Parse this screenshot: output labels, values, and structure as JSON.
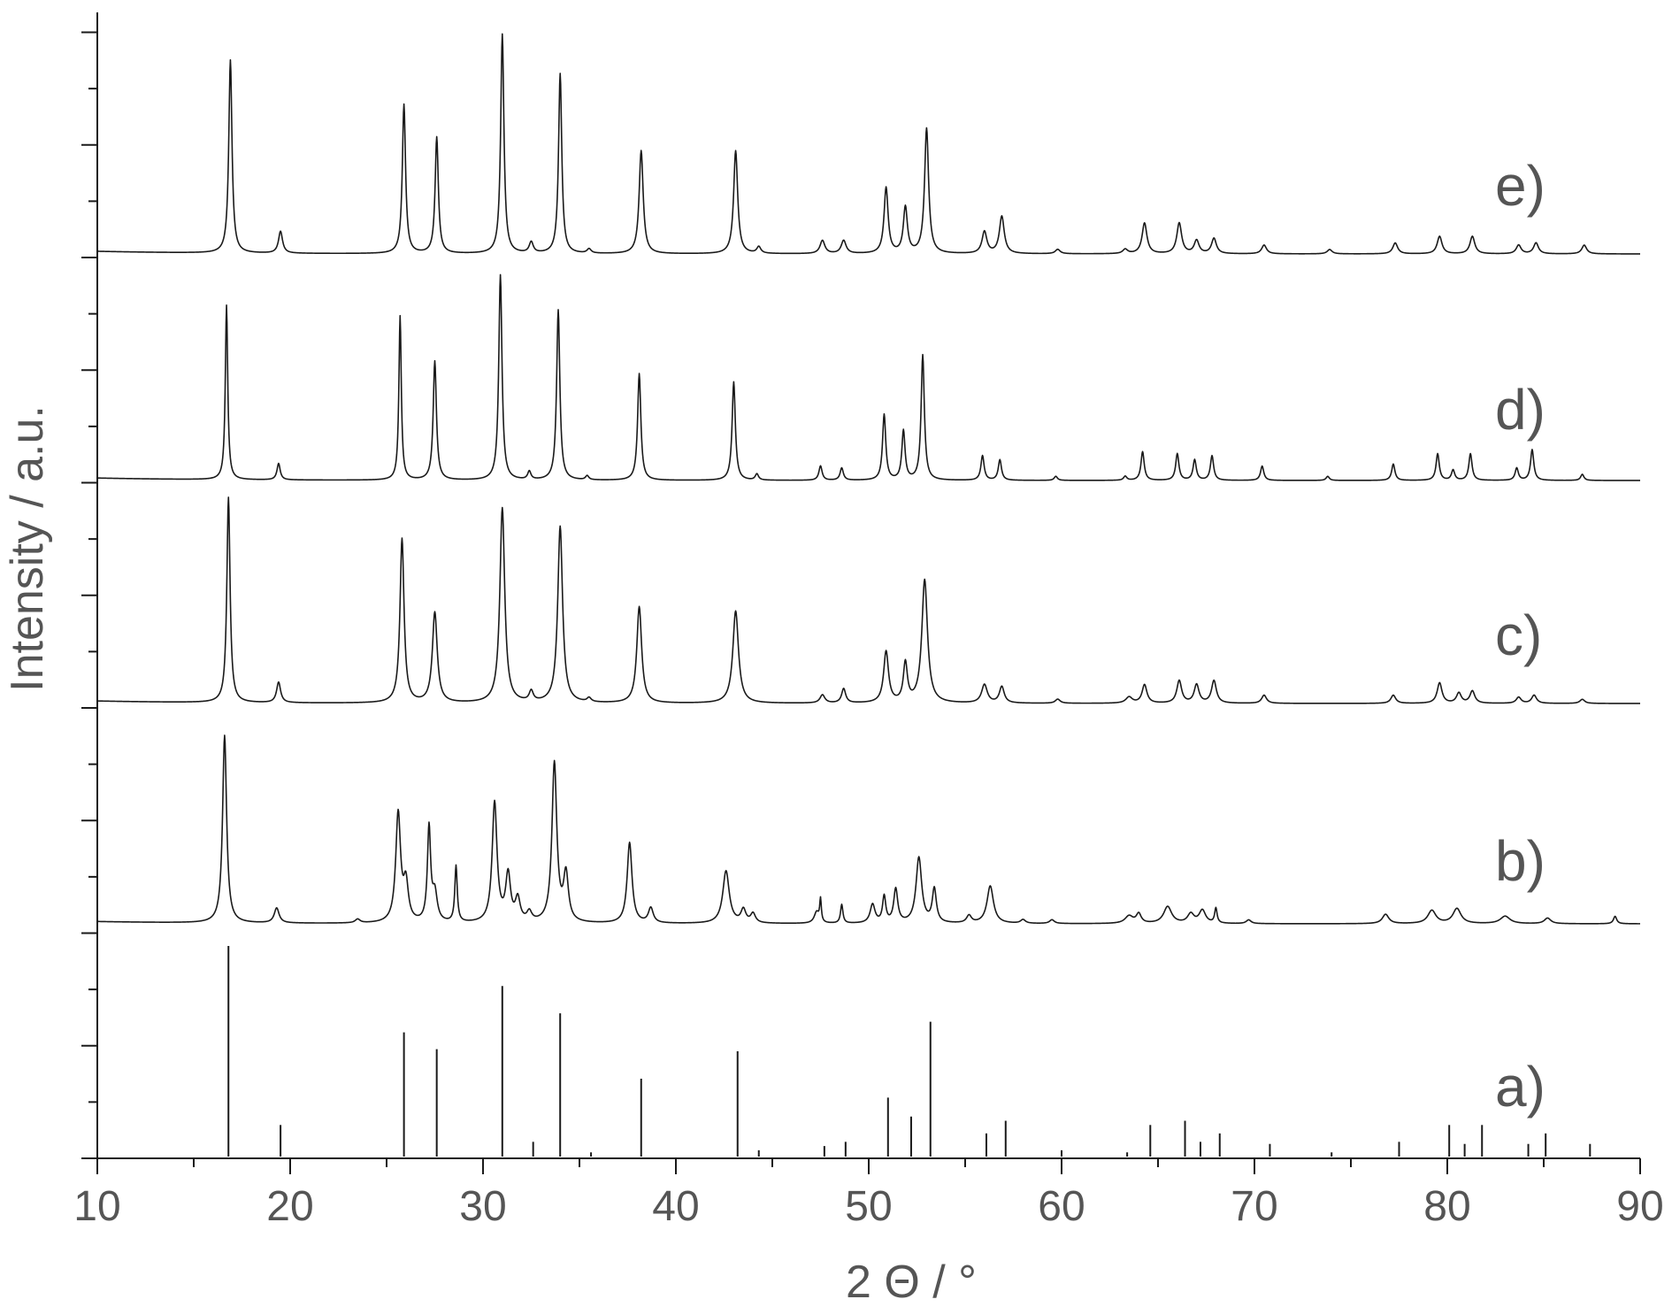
{
  "chart_data": {
    "type": "line",
    "title": "",
    "xlabel": "2 Θ / °",
    "ylabel": "Intensity / a.u.",
    "xlim": [
      10,
      90
    ],
    "x_ticks": [
      10,
      20,
      30,
      40,
      50,
      60,
      70,
      80,
      90
    ],
    "y_tick_labels": "none",
    "grid": false,
    "legend": "none",
    "stacked_offset": true,
    "series": [
      {
        "name": "a)",
        "style": "stick",
        "peaks": [
          {
            "x": 16.8,
            "y": 100
          },
          {
            "x": 19.5,
            "y": 15
          },
          {
            "x": 25.9,
            "y": 59
          },
          {
            "x": 27.6,
            "y": 51
          },
          {
            "x": 31.0,
            "y": 81
          },
          {
            "x": 32.6,
            "y": 7
          },
          {
            "x": 34.0,
            "y": 68
          },
          {
            "x": 35.6,
            "y": 2
          },
          {
            "x": 38.2,
            "y": 37
          },
          {
            "x": 43.2,
            "y": 50
          },
          {
            "x": 44.3,
            "y": 3
          },
          {
            "x": 47.7,
            "y": 5
          },
          {
            "x": 48.8,
            "y": 7
          },
          {
            "x": 51.0,
            "y": 28
          },
          {
            "x": 52.2,
            "y": 19
          },
          {
            "x": 53.2,
            "y": 64
          },
          {
            "x": 56.1,
            "y": 11
          },
          {
            "x": 57.1,
            "y": 17
          },
          {
            "x": 60.0,
            "y": 3
          },
          {
            "x": 63.4,
            "y": 2
          },
          {
            "x": 64.6,
            "y": 15
          },
          {
            "x": 66.4,
            "y": 17
          },
          {
            "x": 67.2,
            "y": 7
          },
          {
            "x": 68.2,
            "y": 11
          },
          {
            "x": 70.8,
            "y": 6
          },
          {
            "x": 74.0,
            "y": 2
          },
          {
            "x": 77.5,
            "y": 7
          },
          {
            "x": 80.1,
            "y": 15
          },
          {
            "x": 80.9,
            "y": 6
          },
          {
            "x": 81.8,
            "y": 15
          },
          {
            "x": 84.2,
            "y": 6
          },
          {
            "x": 85.1,
            "y": 11
          },
          {
            "x": 87.4,
            "y": 6
          }
        ]
      },
      {
        "name": "b)",
        "style": "line",
        "peaks": [
          {
            "x": 16.6,
            "y": 100,
            "w": 0.25
          },
          {
            "x": 19.3,
            "y": 8,
            "w": 0.3
          },
          {
            "x": 23.5,
            "y": 2,
            "w": 0.3
          },
          {
            "x": 25.6,
            "y": 58,
            "w": 0.3
          },
          {
            "x": 26.0,
            "y": 20,
            "w": 0.3
          },
          {
            "x": 27.2,
            "y": 50,
            "w": 0.2
          },
          {
            "x": 27.5,
            "y": 15,
            "w": 0.3
          },
          {
            "x": 28.6,
            "y": 30,
            "w": 0.15
          },
          {
            "x": 30.6,
            "y": 64,
            "w": 0.3
          },
          {
            "x": 31.3,
            "y": 25,
            "w": 0.3
          },
          {
            "x": 31.8,
            "y": 12,
            "w": 0.3
          },
          {
            "x": 32.4,
            "y": 5,
            "w": 0.3
          },
          {
            "x": 33.7,
            "y": 85,
            "w": 0.3
          },
          {
            "x": 34.3,
            "y": 25,
            "w": 0.3
          },
          {
            "x": 37.6,
            "y": 43,
            "w": 0.3
          },
          {
            "x": 38.7,
            "y": 8,
            "w": 0.3
          },
          {
            "x": 42.6,
            "y": 28,
            "w": 0.4
          },
          {
            "x": 43.5,
            "y": 7,
            "w": 0.3
          },
          {
            "x": 44.0,
            "y": 5,
            "w": 0.3
          },
          {
            "x": 47.3,
            "y": 6,
            "w": 0.3
          },
          {
            "x": 47.5,
            "y": 12,
            "w": 0.1
          },
          {
            "x": 48.6,
            "y": 10,
            "w": 0.15
          },
          {
            "x": 50.2,
            "y": 10,
            "w": 0.3
          },
          {
            "x": 50.8,
            "y": 14,
            "w": 0.2
          },
          {
            "x": 51.4,
            "y": 18,
            "w": 0.25
          },
          {
            "x": 52.6,
            "y": 35,
            "w": 0.35
          },
          {
            "x": 53.4,
            "y": 18,
            "w": 0.25
          },
          {
            "x": 55.2,
            "y": 4,
            "w": 0.3
          },
          {
            "x": 56.3,
            "y": 20,
            "w": 0.4
          },
          {
            "x": 58.0,
            "y": 2,
            "w": 0.3
          },
          {
            "x": 59.5,
            "y": 2,
            "w": 0.3
          },
          {
            "x": 63.5,
            "y": 4,
            "w": 0.5
          },
          {
            "x": 64.0,
            "y": 5,
            "w": 0.3
          },
          {
            "x": 65.5,
            "y": 9,
            "w": 0.5
          },
          {
            "x": 66.7,
            "y": 5,
            "w": 0.4
          },
          {
            "x": 67.3,
            "y": 7,
            "w": 0.4
          },
          {
            "x": 68.0,
            "y": 8,
            "w": 0.15
          },
          {
            "x": 69.7,
            "y": 2,
            "w": 0.3
          },
          {
            "x": 76.8,
            "y": 5,
            "w": 0.4
          },
          {
            "x": 79.2,
            "y": 7,
            "w": 0.5
          },
          {
            "x": 80.5,
            "y": 8,
            "w": 0.5
          },
          {
            "x": 83.0,
            "y": 4,
            "w": 0.6
          },
          {
            "x": 85.2,
            "y": 3,
            "w": 0.4
          },
          {
            "x": 88.7,
            "y": 4,
            "w": 0.2
          }
        ]
      },
      {
        "name": "c)",
        "style": "line",
        "peaks": [
          {
            "x": 16.8,
            "y": 100,
            "w": 0.2
          },
          {
            "x": 19.4,
            "y": 10,
            "w": 0.25
          },
          {
            "x": 25.8,
            "y": 80,
            "w": 0.25
          },
          {
            "x": 27.5,
            "y": 44,
            "w": 0.3
          },
          {
            "x": 31.0,
            "y": 95,
            "w": 0.3
          },
          {
            "x": 32.5,
            "y": 5,
            "w": 0.25
          },
          {
            "x": 34.0,
            "y": 86,
            "w": 0.3
          },
          {
            "x": 35.5,
            "y": 2,
            "w": 0.25
          },
          {
            "x": 38.1,
            "y": 47,
            "w": 0.3
          },
          {
            "x": 43.1,
            "y": 45,
            "w": 0.35
          },
          {
            "x": 47.6,
            "y": 4,
            "w": 0.3
          },
          {
            "x": 48.7,
            "y": 7,
            "w": 0.25
          },
          {
            "x": 50.9,
            "y": 25,
            "w": 0.3
          },
          {
            "x": 51.9,
            "y": 19,
            "w": 0.25
          },
          {
            "x": 52.9,
            "y": 60,
            "w": 0.35
          },
          {
            "x": 56.0,
            "y": 9,
            "w": 0.35
          },
          {
            "x": 56.9,
            "y": 8,
            "w": 0.3
          },
          {
            "x": 59.8,
            "y": 2,
            "w": 0.3
          },
          {
            "x": 63.5,
            "y": 3,
            "w": 0.4
          },
          {
            "x": 64.3,
            "y": 9,
            "w": 0.3
          },
          {
            "x": 66.1,
            "y": 11,
            "w": 0.3
          },
          {
            "x": 67.0,
            "y": 9,
            "w": 0.3
          },
          {
            "x": 67.9,
            "y": 11,
            "w": 0.3
          },
          {
            "x": 70.5,
            "y": 4,
            "w": 0.3
          },
          {
            "x": 77.2,
            "y": 4,
            "w": 0.3
          },
          {
            "x": 79.6,
            "y": 10,
            "w": 0.3
          },
          {
            "x": 80.6,
            "y": 5,
            "w": 0.3
          },
          {
            "x": 81.3,
            "y": 6,
            "w": 0.3
          },
          {
            "x": 83.7,
            "y": 3,
            "w": 0.3
          },
          {
            "x": 84.5,
            "y": 4,
            "w": 0.3
          },
          {
            "x": 87.0,
            "y": 2,
            "w": 0.3
          }
        ]
      },
      {
        "name": "d)",
        "style": "line",
        "peaks": [
          {
            "x": 16.7,
            "y": 85,
            "w": 0.15
          },
          {
            "x": 19.4,
            "y": 8,
            "w": 0.2
          },
          {
            "x": 25.7,
            "y": 80,
            "w": 0.15
          },
          {
            "x": 27.5,
            "y": 58,
            "w": 0.2
          },
          {
            "x": 30.9,
            "y": 100,
            "w": 0.2
          },
          {
            "x": 32.4,
            "y": 4,
            "w": 0.2
          },
          {
            "x": 33.9,
            "y": 83,
            "w": 0.2
          },
          {
            "x": 35.4,
            "y": 2,
            "w": 0.2
          },
          {
            "x": 38.1,
            "y": 52,
            "w": 0.2
          },
          {
            "x": 43.0,
            "y": 48,
            "w": 0.2
          },
          {
            "x": 44.2,
            "y": 3,
            "w": 0.2
          },
          {
            "x": 47.5,
            "y": 7,
            "w": 0.2
          },
          {
            "x": 48.6,
            "y": 6,
            "w": 0.2
          },
          {
            "x": 50.8,
            "y": 32,
            "w": 0.2
          },
          {
            "x": 51.8,
            "y": 24,
            "w": 0.2
          },
          {
            "x": 52.8,
            "y": 61,
            "w": 0.2
          },
          {
            "x": 55.9,
            "y": 12,
            "w": 0.2
          },
          {
            "x": 56.8,
            "y": 10,
            "w": 0.2
          },
          {
            "x": 59.7,
            "y": 2,
            "w": 0.2
          },
          {
            "x": 63.3,
            "y": 2,
            "w": 0.2
          },
          {
            "x": 64.2,
            "y": 14,
            "w": 0.2
          },
          {
            "x": 66.0,
            "y": 13,
            "w": 0.2
          },
          {
            "x": 66.9,
            "y": 10,
            "w": 0.2
          },
          {
            "x": 67.8,
            "y": 12,
            "w": 0.2
          },
          {
            "x": 70.4,
            "y": 7,
            "w": 0.2
          },
          {
            "x": 73.8,
            "y": 2,
            "w": 0.2
          },
          {
            "x": 77.2,
            "y": 8,
            "w": 0.2
          },
          {
            "x": 79.5,
            "y": 13,
            "w": 0.2
          },
          {
            "x": 80.3,
            "y": 5,
            "w": 0.2
          },
          {
            "x": 81.2,
            "y": 13,
            "w": 0.2
          },
          {
            "x": 83.6,
            "y": 6,
            "w": 0.2
          },
          {
            "x": 84.4,
            "y": 15,
            "w": 0.2
          },
          {
            "x": 87.0,
            "y": 3,
            "w": 0.2
          }
        ]
      },
      {
        "name": "e)",
        "style": "line",
        "peaks": [
          {
            "x": 16.9,
            "y": 88,
            "w": 0.2
          },
          {
            "x": 19.5,
            "y": 10,
            "w": 0.25
          },
          {
            "x": 25.9,
            "y": 68,
            "w": 0.2
          },
          {
            "x": 27.6,
            "y": 53,
            "w": 0.2
          },
          {
            "x": 31.0,
            "y": 100,
            "w": 0.2
          },
          {
            "x": 32.5,
            "y": 5,
            "w": 0.25
          },
          {
            "x": 34.0,
            "y": 82,
            "w": 0.2
          },
          {
            "x": 35.5,
            "y": 2,
            "w": 0.25
          },
          {
            "x": 38.2,
            "y": 47,
            "w": 0.25
          },
          {
            "x": 43.1,
            "y": 47,
            "w": 0.25
          },
          {
            "x": 44.3,
            "y": 3,
            "w": 0.25
          },
          {
            "x": 47.6,
            "y": 6,
            "w": 0.3
          },
          {
            "x": 48.7,
            "y": 6,
            "w": 0.3
          },
          {
            "x": 50.9,
            "y": 30,
            "w": 0.25
          },
          {
            "x": 51.9,
            "y": 21,
            "w": 0.25
          },
          {
            "x": 53.0,
            "y": 57,
            "w": 0.25
          },
          {
            "x": 56.0,
            "y": 10,
            "w": 0.3
          },
          {
            "x": 56.9,
            "y": 17,
            "w": 0.3
          },
          {
            "x": 59.8,
            "y": 2,
            "w": 0.3
          },
          {
            "x": 63.3,
            "y": 2,
            "w": 0.3
          },
          {
            "x": 64.3,
            "y": 14,
            "w": 0.3
          },
          {
            "x": 66.1,
            "y": 14,
            "w": 0.3
          },
          {
            "x": 67.0,
            "y": 6,
            "w": 0.3
          },
          {
            "x": 67.9,
            "y": 7,
            "w": 0.3
          },
          {
            "x": 70.5,
            "y": 4,
            "w": 0.3
          },
          {
            "x": 73.9,
            "y": 2,
            "w": 0.3
          },
          {
            "x": 77.3,
            "y": 5,
            "w": 0.3
          },
          {
            "x": 79.6,
            "y": 8,
            "w": 0.3
          },
          {
            "x": 81.3,
            "y": 8,
            "w": 0.3
          },
          {
            "x": 83.7,
            "y": 4,
            "w": 0.3
          },
          {
            "x": 84.6,
            "y": 5,
            "w": 0.3
          },
          {
            "x": 87.1,
            "y": 4,
            "w": 0.3
          }
        ]
      }
    ]
  }
}
